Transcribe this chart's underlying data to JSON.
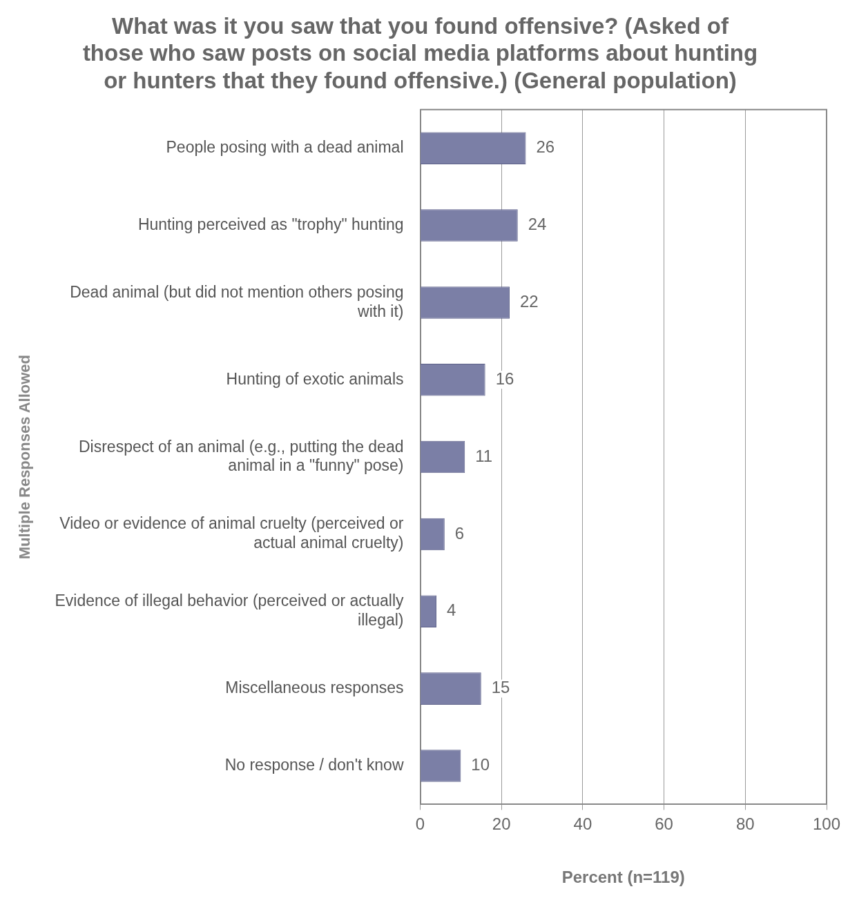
{
  "chart_data": {
    "type": "bar",
    "orientation": "horizontal",
    "title": "What was it you saw that you found offensive? (Asked of those who saw posts on social media platforms about hunting or hunters that they found offensive.) (General population)",
    "xlabel": "Percent (n=119)",
    "ylabel": "Multiple Responses Allowed",
    "categories": [
      "People posing with a dead animal",
      "Hunting perceived as \"trophy\" hunting",
      "Dead animal (but did not mention others posing with it)",
      "Hunting of exotic animals",
      "Disrespect of an animal (e.g., putting the dead animal in a \"funny\" pose)",
      "Video or evidence of animal cruelty (perceived or actual animal cruelty)",
      "Evidence of illegal behavior (perceived or actually illegal)",
      "Miscellaneous responses",
      "No response / don't know"
    ],
    "values": [
      26,
      24,
      22,
      16,
      11,
      6,
      4,
      15,
      10
    ],
    "color": "#7b7fa6",
    "xlim": [
      0,
      100
    ],
    "xticks": [
      0,
      20,
      40,
      60,
      80,
      100
    ],
    "grid": "x",
    "data_labels": true,
    "legend": false
  }
}
